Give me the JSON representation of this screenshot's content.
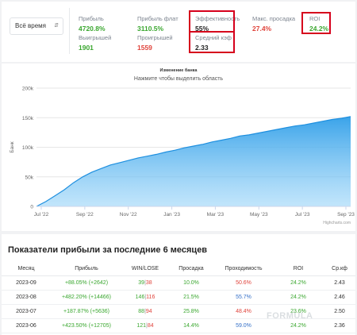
{
  "filter": {
    "period": "Всё время"
  },
  "stats": [
    {
      "label": "Прибыль",
      "value": "4720.8%",
      "color": "green"
    },
    {
      "label": "Прибыль флат",
      "value": "3110.5%",
      "color": "green"
    },
    {
      "label": "Эффективность",
      "value": "55%",
      "color": "dark"
    },
    {
      "label": "Макс. просадка",
      "value": "27.4%",
      "color": "red"
    },
    {
      "label": "ROI",
      "value": "24.2%",
      "color": "green"
    },
    {
      "label": "Выигрышей",
      "value": "1901",
      "color": "green"
    },
    {
      "label": "Проигрышей",
      "value": "1559",
      "color": "red"
    },
    {
      "label": "Средний кэф",
      "value": "2.33",
      "color": "dark"
    }
  ],
  "chart": {
    "title": "Изменение банка",
    "subtitle": "Нажмите чтобы выделить область",
    "credit": "Highcharts.com"
  },
  "chart_data": {
    "type": "area",
    "title": "Изменение банка",
    "ylabel": "Банк",
    "ylim": [
      0,
      200000
    ],
    "y_ticks": [
      "0",
      "50k",
      "100k",
      "150k",
      "200k"
    ],
    "y_tick_values": [
      0,
      50000,
      100000,
      150000,
      200000
    ],
    "x_ticks": [
      "Jul '22",
      "Sep '22",
      "Nov '22",
      "Jan '23",
      "Mar '23",
      "May '23",
      "Jul '23",
      "Sep '23"
    ],
    "grid": true,
    "color": "#2f9ee8",
    "series": [
      {
        "values": [
          0,
          8000,
          18000,
          28000,
          40000,
          50000,
          58000,
          64000,
          70000,
          74000,
          78000,
          82000,
          85000,
          88000,
          92000,
          95000,
          99000,
          102000,
          105000,
          109000,
          112000,
          115000,
          119000,
          121000,
          124000,
          127000,
          130000,
          133000,
          136000,
          138000,
          141000,
          144000,
          147000,
          149000,
          152000
        ]
      }
    ]
  },
  "table": {
    "title": "Показатели прибыли за последние 6 месяцев",
    "headers": [
      "Месяц",
      "Прибыль",
      "WIN/LOSE",
      "Просадка",
      "Проходимость",
      "ROI",
      "Ср.кф"
    ],
    "rows": [
      {
        "month": "2023-09",
        "profit": "+88.05% (+2642)",
        "win": "39",
        "lose": "38",
        "drawdown": "10.0%",
        "pass": "50.6%",
        "pass_color": "red",
        "roi": "24.2%",
        "avg": "2.43"
      },
      {
        "month": "2023-08",
        "profit": "+482.20% (+14466)",
        "win": "146",
        "lose": "116",
        "drawdown": "21.5%",
        "pass": "55.7%",
        "pass_color": "blue",
        "roi": "24.2%",
        "avg": "2.46"
      },
      {
        "month": "2023-07",
        "profit": "+187.87% (+5636)",
        "win": "88",
        "lose": "94",
        "drawdown": "25.8%",
        "pass": "48.4%",
        "pass_color": "red",
        "roi": "23.6%",
        "avg": "2.50"
      },
      {
        "month": "2023-06",
        "profit": "+423.50% (+12705)",
        "win": "121",
        "lose": "84",
        "drawdown": "14.4%",
        "pass": "59.0%",
        "pass_color": "blue",
        "roi": "24.2%",
        "avg": "2.36"
      }
    ]
  }
}
